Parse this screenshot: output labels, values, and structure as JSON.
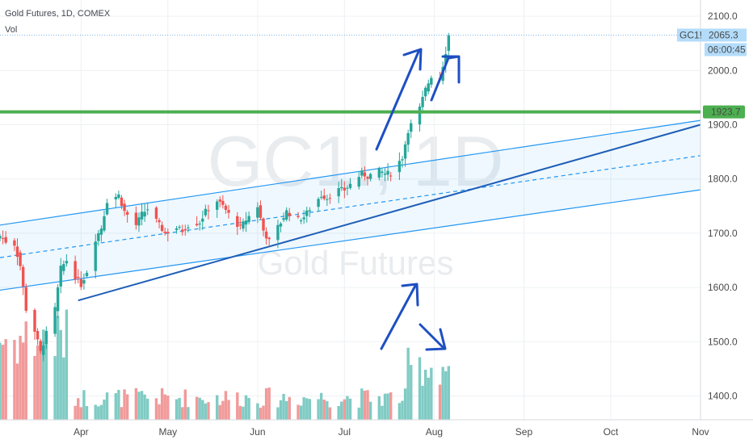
{
  "header": {
    "symbol_line": "Gold Futures, 1D, COMEX",
    "volume_label": "Vol"
  },
  "watermark": {
    "symbol": "GC1!, 1D",
    "name": "Gold Futures"
  },
  "price_labels": {
    "ticker": "GC1!",
    "last_price": "2065.3",
    "countdown": "06:00:45",
    "level": "1923.7"
  },
  "colors": {
    "up": "#26a69a",
    "down": "#ef5350",
    "volume_up": "#80cbc4",
    "volume_down": "#f19a9a",
    "level_line": "#4caf50",
    "channel": "#2196f3",
    "trendline": "#1e5eb8",
    "arrows": "#1e4fc2",
    "price_tag": "#b3dcfb"
  },
  "chart_data": {
    "type": "candlestick",
    "symbol": "GC1!",
    "title": "Gold Futures, 1D, COMEX",
    "y_axis": {
      "ticks": [
        1400,
        1500,
        1600,
        1700,
        1800,
        1900,
        2000,
        2100
      ],
      "range": [
        1356,
        2130
      ],
      "side": "right"
    },
    "x_axis": {
      "ticks": [
        "Apr",
        "May",
        "Jun",
        "Jul",
        "Aug",
        "Sep",
        "Oct",
        "Nov"
      ],
      "range": [
        "2020-03-04",
        "2020-11-01"
      ]
    },
    "last_price": 2065.3,
    "horizontal_level": 1923.7,
    "channel": {
      "upper": [
        [
          "2020-03-04",
          1715
        ],
        [
          "2020-11-01",
          1908
        ]
      ],
      "middle": [
        [
          "2020-03-04",
          1655
        ],
        [
          "2020-11-01",
          1843
        ]
      ],
      "lower": [
        [
          "2020-03-04",
          1595
        ],
        [
          "2020-11-01",
          1780
        ]
      ]
    },
    "trendline": [
      [
        "2020-03-31",
        1576
      ],
      [
        "2020-11-01",
        1900
      ]
    ],
    "close_series": [
      {
        "date": "2020-03-04",
        "close": 1695
      },
      {
        "date": "2020-03-06",
        "close": 1685
      },
      {
        "date": "2020-03-09",
        "close": 1680
      },
      {
        "date": "2020-03-11",
        "close": 1640
      },
      {
        "date": "2020-03-13",
        "close": 1560
      },
      {
        "date": "2020-03-16",
        "close": 1520
      },
      {
        "date": "2020-03-18",
        "close": 1480
      },
      {
        "date": "2020-03-20",
        "close": 1515
      },
      {
        "date": "2020-03-23",
        "close": 1560
      },
      {
        "date": "2020-03-25",
        "close": 1635
      },
      {
        "date": "2020-03-27",
        "close": 1650
      },
      {
        "date": "2020-03-30",
        "close": 1620
      },
      {
        "date": "2020-04-01",
        "close": 1605
      },
      {
        "date": "2020-04-03",
        "close": 1630
      },
      {
        "date": "2020-04-06",
        "close": 1690
      },
      {
        "date": "2020-04-08",
        "close": 1710
      },
      {
        "date": "2020-04-10",
        "close": 1760
      },
      {
        "date": "2020-04-14",
        "close": 1770
      },
      {
        "date": "2020-04-16",
        "close": 1740
      },
      {
        "date": "2020-04-20",
        "close": 1715
      },
      {
        "date": "2020-04-22",
        "close": 1735
      },
      {
        "date": "2020-04-24",
        "close": 1745
      },
      {
        "date": "2020-04-28",
        "close": 1715
      },
      {
        "date": "2020-04-30",
        "close": 1700
      },
      {
        "date": "2020-05-04",
        "close": 1710
      },
      {
        "date": "2020-05-06",
        "close": 1705
      },
      {
        "date": "2020-05-08",
        "close": 1715
      },
      {
        "date": "2020-05-12",
        "close": 1720
      },
      {
        "date": "2020-05-14",
        "close": 1740
      },
      {
        "date": "2020-05-18",
        "close": 1760
      },
      {
        "date": "2020-05-20",
        "close": 1750
      },
      {
        "date": "2020-05-22",
        "close": 1735
      },
      {
        "date": "2020-05-26",
        "close": 1710
      },
      {
        "date": "2020-05-28",
        "close": 1725
      },
      {
        "date": "2020-06-01",
        "close": 1750
      },
      {
        "date": "2020-06-03",
        "close": 1705
      },
      {
        "date": "2020-06-05",
        "close": 1685
      },
      {
        "date": "2020-06-09",
        "close": 1720
      },
      {
        "date": "2020-06-11",
        "close": 1740
      },
      {
        "date": "2020-06-15",
        "close": 1725
      },
      {
        "date": "2020-06-17",
        "close": 1730
      },
      {
        "date": "2020-06-19",
        "close": 1745
      },
      {
        "date": "2020-06-23",
        "close": 1770
      },
      {
        "date": "2020-06-25",
        "close": 1765
      },
      {
        "date": "2020-06-29",
        "close": 1780
      },
      {
        "date": "2020-07-01",
        "close": 1780
      },
      {
        "date": "2020-07-03",
        "close": 1790
      },
      {
        "date": "2020-07-07",
        "close": 1810
      },
      {
        "date": "2020-07-09",
        "close": 1805
      },
      {
        "date": "2020-07-13",
        "close": 1815
      },
      {
        "date": "2020-07-15",
        "close": 1810
      },
      {
        "date": "2020-07-17",
        "close": 1810
      },
      {
        "date": "2020-07-21",
        "close": 1840
      },
      {
        "date": "2020-07-23",
        "close": 1890
      },
      {
        "date": "2020-07-27",
        "close": 1930
      },
      {
        "date": "2020-07-29",
        "close": 1965
      },
      {
        "date": "2020-07-31",
        "close": 1990
      },
      {
        "date": "2020-08-03",
        "close": 1985
      },
      {
        "date": "2020-08-05",
        "close": 2035
      },
      {
        "date": "2020-08-06",
        "close": 2065.3
      }
    ],
    "annotations": [
      {
        "type": "arrow",
        "shape": "up",
        "description": "blue arrow pointing up-right near price highs"
      },
      {
        "type": "arrow",
        "shape": "up-flat",
        "description": "second blue arrow near price highs"
      },
      {
        "type": "arrow",
        "shape": "up",
        "description": "blue arrow pointing up-right in lower area"
      },
      {
        "type": "arrow",
        "shape": "down",
        "description": "blue arrow pointing down-right in lower area"
      }
    ]
  }
}
